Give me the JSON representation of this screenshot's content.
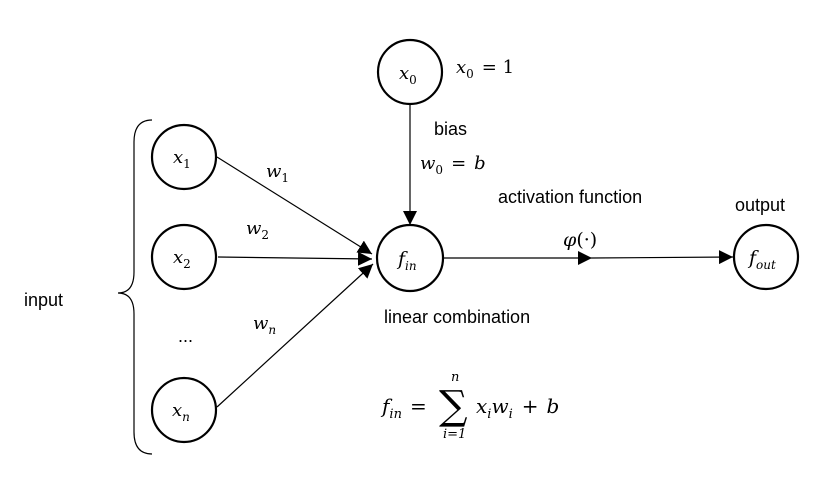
{
  "labels": {
    "input": "input",
    "bias": "bias",
    "activation_function": "activation function",
    "output": "output",
    "linear_combination": "linear combination",
    "ellipsis": "..."
  },
  "nodes": {
    "x0": {
      "base": "x",
      "sub": "0"
    },
    "x1": {
      "base": "x",
      "sub": "1"
    },
    "x2": {
      "base": "x",
      "sub": "2"
    },
    "xn": {
      "base": "x",
      "sub": "n"
    },
    "fin": {
      "base": "f",
      "sub": "in"
    },
    "fout": {
      "base": "f",
      "sub": "out"
    }
  },
  "weights": {
    "w1": {
      "base": "w",
      "sub": "1"
    },
    "w2": {
      "base": "w",
      "sub": "2"
    },
    "wn": {
      "base": "w",
      "sub": "n"
    }
  },
  "equations": {
    "x0_eq": {
      "base": "x",
      "sub": "0",
      "rhs": "= 1"
    },
    "w0_eq": {
      "base": "w",
      "sub": "0",
      "eq": "=",
      "rhs": "b"
    },
    "phi": {
      "symbol": "φ",
      "arg": "(·)"
    },
    "fin_eq": {
      "lhs_base": "f",
      "lhs_sub": "in",
      "eq": "=",
      "sum": "∑",
      "upper": "n",
      "lower": "i=1",
      "t1_base": "x",
      "t1_sub": "i",
      "t2_base": "w",
      "t2_sub": "i",
      "plus": "+",
      "b": "b"
    }
  },
  "colors": {
    "stroke": "#000000",
    "background": "#ffffff"
  }
}
